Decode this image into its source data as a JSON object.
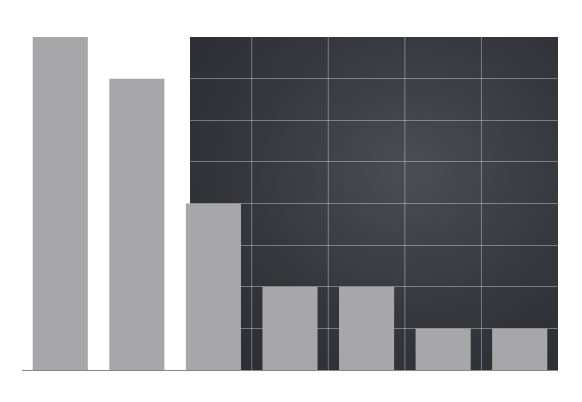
{
  "chart_data": {
    "type": "bar",
    "categories": [
      null,
      null,
      null,
      null,
      null,
      null,
      null
    ],
    "values": [
      8,
      7,
      4,
      2,
      2,
      1,
      1
    ],
    "color": "#a7a7a9",
    "ylim": [
      0,
      8
    ],
    "yticks": [
      0,
      1,
      2,
      3,
      4,
      5,
      6,
      7,
      8
    ],
    "grid": true,
    "tick_labels": false
  }
}
